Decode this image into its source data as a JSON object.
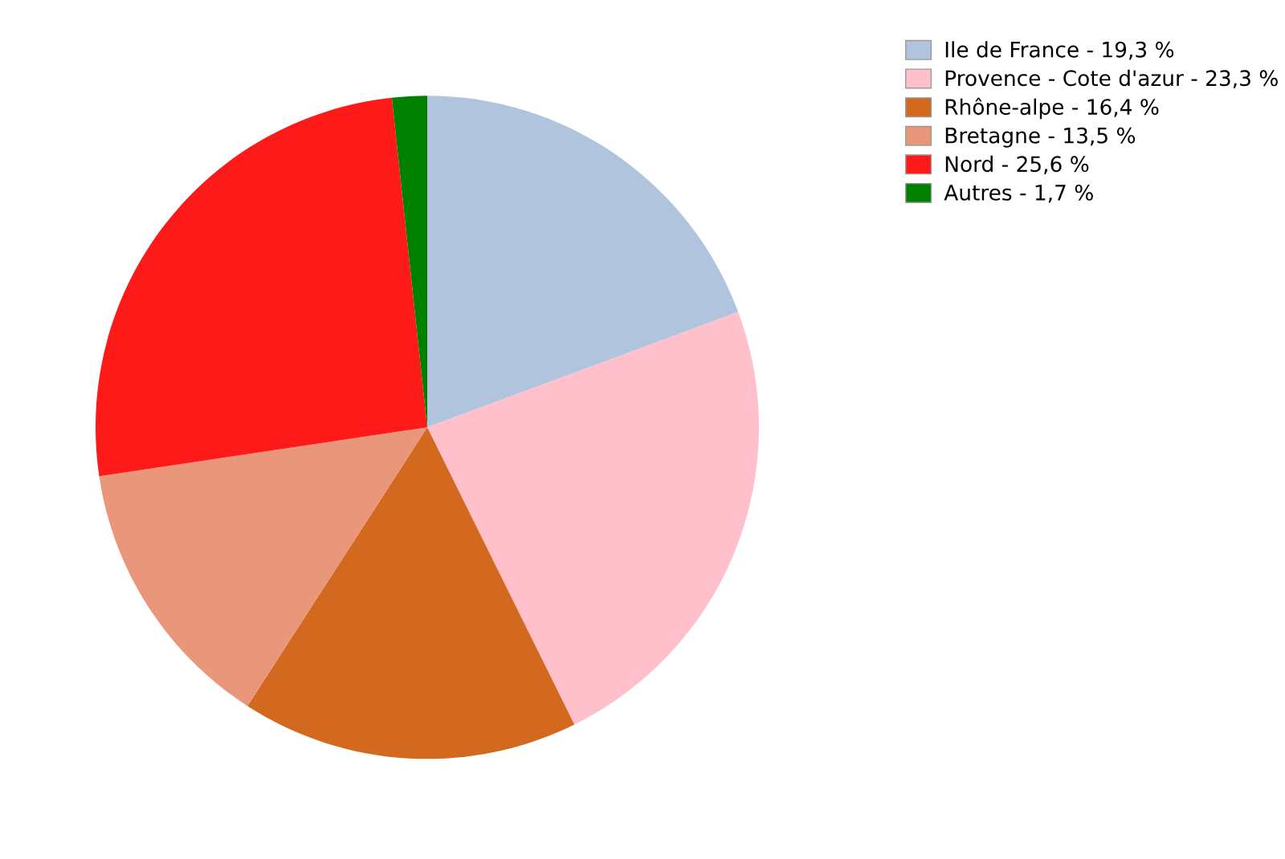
{
  "chart_data": {
    "type": "pie",
    "categories": [
      "Ile de France - 19,3 %",
      "Provence - Cote d'azur - 23,3 %",
      "Rhône-alpe - 16,4 %",
      "Bretagne - 13,5 %",
      "Nord - 25,6 %",
      "Autres - 1,7 %"
    ],
    "values": [
      19.3,
      23.3,
      16.4,
      13.5,
      25.6,
      1.7
    ],
    "colors": [
      "#b0c4de",
      "#ffc0cb",
      "#d2691e",
      "#e9967a",
      "#ff1a1a",
      "#008000"
    ],
    "legend": "top right"
  }
}
